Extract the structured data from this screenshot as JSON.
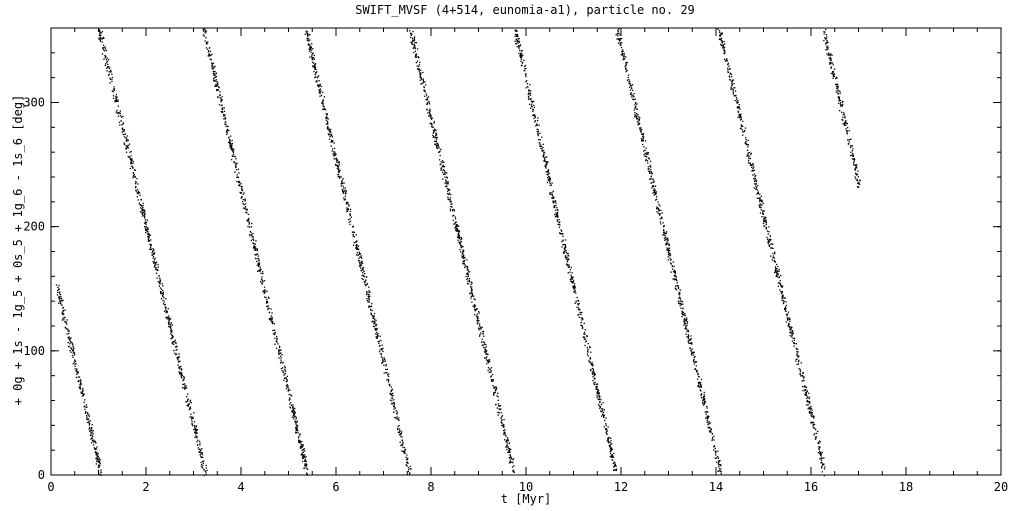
{
  "chart_data": {
    "type": "scatter",
    "title": "SWIFT_MVSF (4+514, eunomia-a1), particle no. 29",
    "xlabel": "t [Myr]",
    "ylabel": "+ 0g + 1s - 1g_5 + 0s_5 + 1g_6 - 1s_6 [deg]",
    "xlim": [
      0,
      20
    ],
    "ylim": [
      0,
      360
    ],
    "x_ticks": [
      0,
      2,
      4,
      6,
      8,
      10,
      12,
      14,
      16,
      18,
      20
    ],
    "x_tick_labels": [
      "0",
      "2",
      "4",
      "6",
      "8",
      "10",
      "12",
      "14",
      "16",
      "18",
      "20"
    ],
    "y_ticks": [
      0,
      100,
      200,
      300
    ],
    "y_tick_labels": [
      "0",
      "100",
      "200",
      "300"
    ],
    "grid": false,
    "marker_color": "#000000",
    "series": [
      {
        "segments": [
          {
            "t_start": 0.1,
            "t_end": 1.05,
            "angle_start": 155,
            "angle_end": 0
          },
          {
            "t_start": 1.0,
            "t_end": 3.25,
            "angle_start": 360,
            "angle_end": 0
          },
          {
            "t_start": 3.2,
            "t_end": 5.4,
            "angle_start": 360,
            "angle_end": 0
          },
          {
            "t_start": 5.35,
            "t_end": 7.55,
            "angle_start": 360,
            "angle_end": 0
          },
          {
            "t_start": 7.55,
            "t_end": 9.75,
            "angle_start": 360,
            "angle_end": 0
          },
          {
            "t_start": 9.75,
            "t_end": 11.9,
            "angle_start": 360,
            "angle_end": 0
          },
          {
            "t_start": 11.9,
            "t_end": 14.1,
            "angle_start": 360,
            "angle_end": 0
          },
          {
            "t_start": 14.05,
            "t_end": 16.3,
            "angle_start": 360,
            "angle_end": 0
          },
          {
            "t_start": 16.25,
            "t_end": 17.0,
            "angle_start": 360,
            "angle_end": 235
          }
        ]
      }
    ]
  }
}
